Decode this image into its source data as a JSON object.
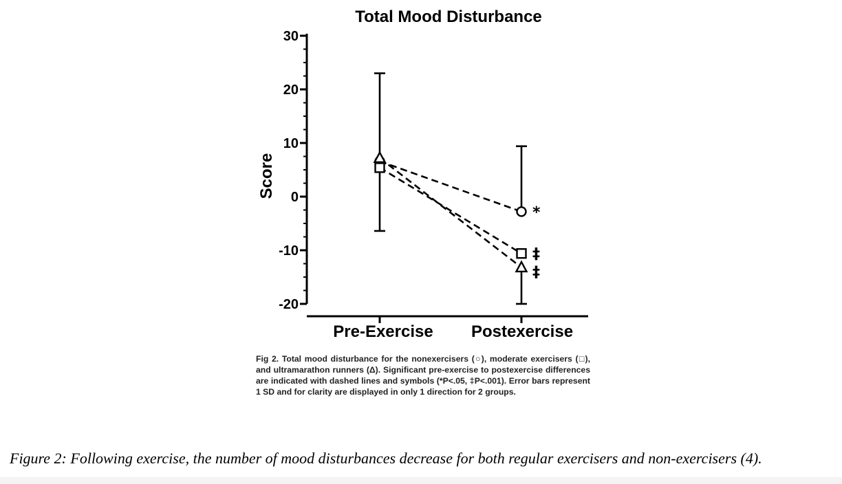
{
  "chart_data": {
    "type": "line",
    "title": "Total Mood Disturbance",
    "ylabel": "Score",
    "xlabel": "",
    "categories": [
      "Pre-Exercise",
      "Postexercise"
    ],
    "ylim": [
      -20,
      30
    ],
    "yticks": [
      30,
      20,
      10,
      0,
      -10,
      -20
    ],
    "grid": false,
    "legend": "none",
    "series": [
      {
        "marker": "circle",
        "values": [
          6.6,
          -2.8
        ],
        "error_up": [
          16.4,
          12.2
        ],
        "error_down": [
          0,
          0
        ],
        "significance": [
          "",
          "*"
        ]
      },
      {
        "marker": "square",
        "values": [
          5.4,
          -10.6
        ],
        "error_up": [
          0,
          0
        ],
        "error_down": [
          11.8,
          0
        ],
        "significance": [
          "",
          "‡"
        ]
      },
      {
        "marker": "triangle",
        "values": [
          7.2,
          -13.2
        ],
        "error_up": [
          0,
          0
        ],
        "error_down": [
          0,
          6.8
        ],
        "significance": [
          "",
          "‡"
        ]
      }
    ]
  },
  "fig_caption": "Fig 2. Total mood disturbance for the nonexercisers (○), moderate exercisers (□), and ultramarathon runners (Δ). Significant pre-exercise to postexercise differences are indicated with dashed lines and symbols (*P<.05, ‡P<.001). Error bars represent 1 SD and for clarity are displayed in only 1 direction for 2 groups.",
  "figure_caption": "Figure 2: Following exercise, the number of mood disturbances decrease for both regular exercisers and non-exercisers (4)."
}
